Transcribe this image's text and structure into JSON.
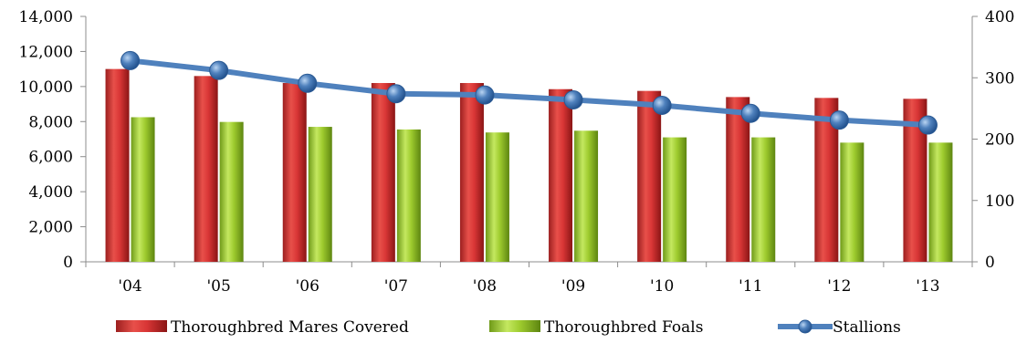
{
  "chart_data": {
    "type": "bar",
    "categories": [
      "'04",
      "'05",
      "'06",
      "'07",
      "'08",
      "'09",
      "'10",
      "'11",
      "'12",
      "'13"
    ],
    "series": [
      {
        "name": "Thoroughbred Mares Covered",
        "type": "bar",
        "axis": "left",
        "color": "#d93636",
        "values": [
          11000,
          10600,
          10200,
          10200,
          10200,
          9850,
          9750,
          9400,
          9350,
          9300
        ]
      },
      {
        "name": "Thoroughbred Foals",
        "type": "bar",
        "axis": "left",
        "color": "#9ecb2e",
        "values": [
          8250,
          7980,
          7700,
          7550,
          7380,
          7480,
          7100,
          7100,
          6800,
          6800
        ]
      },
      {
        "name": "Stallions",
        "type": "line",
        "axis": "right",
        "color": "#4f81bd",
        "values": [
          328,
          312,
          291,
          274,
          272,
          264,
          255,
          242,
          231,
          223
        ]
      }
    ],
    "ylim_left": [
      0,
      14000
    ],
    "yticks_left": [
      "0",
      "2,000",
      "4,000",
      "6,000",
      "8,000",
      "10,000",
      "12,000",
      "14,000"
    ],
    "ylim_right": [
      0,
      400
    ],
    "yticks_right": [
      "0",
      "100",
      "200",
      "300",
      "400"
    ],
    "grid": false,
    "legend_position": "bottom"
  }
}
